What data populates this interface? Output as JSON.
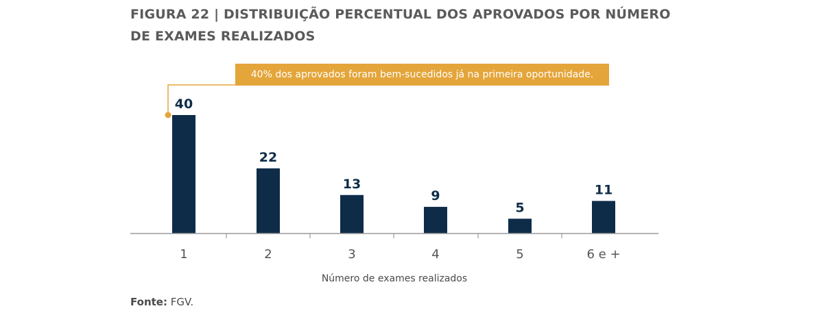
{
  "title_line1": "FIGURA 22 | DISTRIBUIÇÃO PERCENTUAL DOS APROVADOS POR NÚMERO",
  "title_line2": "DE EXAMES REALIZADOS",
  "callout_text": "40% dos aprovados foram bem-sucedidos já na primeira oportunidade.",
  "source_label": "Fonte:",
  "source_value": "FGV.",
  "colors": {
    "bar": "#0e2c48",
    "callout": "#e4a53a",
    "axis": "#999999",
    "title": "#5a5a5a"
  },
  "chart_data": {
    "type": "bar",
    "title": "FIGURA 22 | DISTRIBUIÇÃO PERCENTUAL DOS APROVADOS POR NÚMERO DE EXAMES REALIZADOS",
    "xlabel": "Número de exames realizados",
    "ylabel": "",
    "categories": [
      "1",
      "2",
      "3",
      "4",
      "5",
      "6 e +"
    ],
    "values": [
      40,
      22,
      13,
      9,
      5,
      11
    ],
    "ylim": [
      0,
      40
    ],
    "grid": false,
    "legend": "none"
  }
}
